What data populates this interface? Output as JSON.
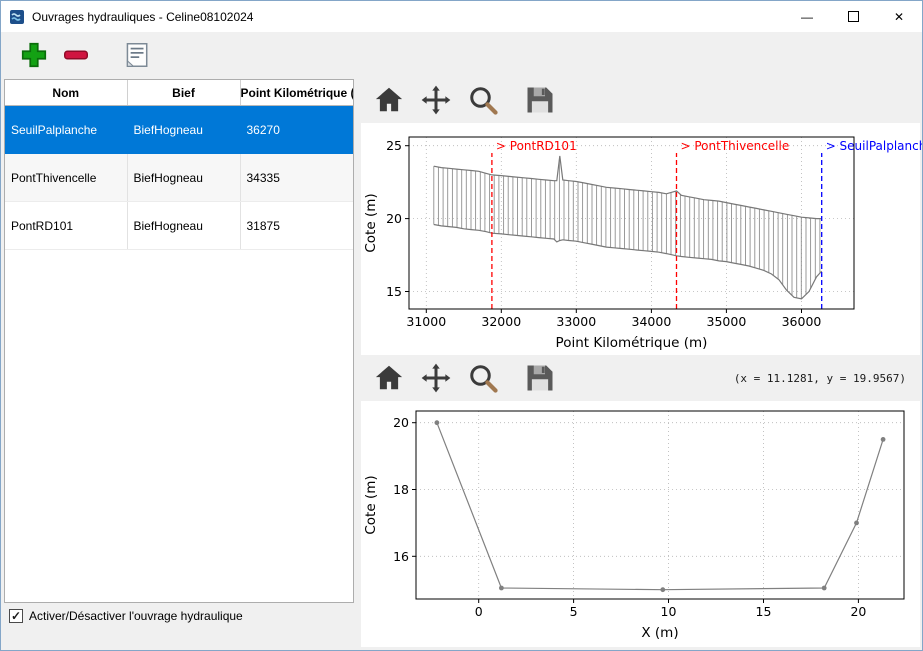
{
  "window": {
    "title": "Ouvrages hydrauliques - Celine08102024",
    "controls": {
      "minimize": "—",
      "close": "✕"
    }
  },
  "toolbar": {
    "buttons": [
      "add",
      "remove",
      "edit"
    ]
  },
  "table": {
    "columns": [
      "Nom",
      "Bief",
      "Point Kilométrique (m)"
    ],
    "rows": [
      {
        "nom": "SeuilPalplanche",
        "bief": "BiefHogneau",
        "pk": "36270",
        "selected": true
      },
      {
        "nom": "PontThivencelle",
        "bief": "BiefHogneau",
        "pk": "34335",
        "selected": false
      },
      {
        "nom": "PontRD101",
        "bief": "BiefHogneau",
        "pk": "31875",
        "selected": false
      }
    ]
  },
  "footer": {
    "checkbox_label": "Activer/Désactiver l'ouvrage hydraulique",
    "checkbox_checked": true,
    "check_glyph": "✓"
  },
  "plot_toolbar": {
    "buttons": [
      "home",
      "pan",
      "zoom",
      "save"
    ],
    "coords": "(x = 11.1281,  y = 19.9567)"
  },
  "colors": {
    "selection": "#0078d7",
    "annotation_red": "#ff0000",
    "annotation_blue": "#0000ff",
    "profile_gray": "#787878"
  },
  "chart_data": [
    {
      "type": "line",
      "title": "",
      "xlabel": "Point Kilométrique (m)",
      "ylabel": "Cote (m)",
      "xlim": [
        30770,
        36700
      ],
      "ylim": [
        13.8,
        25.6
      ],
      "xticks": [
        31000,
        32000,
        33000,
        34000,
        35000,
        36000
      ],
      "yticks": [
        15,
        20,
        25
      ],
      "grid": true,
      "hatch": {
        "step": 62,
        "color": "#8f8f8f"
      },
      "series": [
        {
          "name": "profile_bottom",
          "color": "#787878",
          "marker": false,
          "x": [
            31100,
            31200,
            31300,
            31400,
            31500,
            31600,
            31700,
            31800,
            31875,
            32000,
            32100,
            32200,
            32300,
            32400,
            32500,
            32600,
            32700,
            32740,
            32780,
            32820,
            32900,
            33000,
            33100,
            33200,
            33300,
            33400,
            33500,
            33600,
            33700,
            33800,
            33900,
            34000,
            34100,
            34200,
            34335,
            34400,
            34500,
            34600,
            34700,
            34800,
            34900,
            35000,
            35100,
            35200,
            35300,
            35400,
            35500,
            35600,
            35700,
            35800,
            35900,
            36000,
            36100,
            36200,
            36270
          ],
          "y": [
            19.6,
            19.5,
            19.45,
            19.4,
            19.3,
            19.25,
            19.2,
            19.1,
            19.0,
            18.95,
            18.9,
            18.85,
            18.8,
            18.75,
            18.7,
            18.65,
            18.6,
            18.4,
            18.5,
            18.55,
            18.5,
            18.45,
            18.35,
            18.25,
            18.15,
            18.05,
            18.0,
            17.95,
            17.9,
            17.85,
            17.8,
            17.75,
            17.7,
            17.6,
            17.45,
            17.4,
            17.35,
            17.3,
            17.25,
            17.2,
            17.1,
            17.05,
            16.95,
            16.85,
            16.75,
            16.6,
            16.45,
            16.2,
            15.8,
            15.1,
            14.6,
            14.5,
            15.0,
            16.0,
            16.4
          ]
        },
        {
          "name": "profile_top",
          "color": "#787878",
          "marker": false,
          "x": [
            31100,
            31200,
            31300,
            31400,
            31500,
            31600,
            31700,
            31800,
            31875,
            32000,
            32100,
            32200,
            32300,
            32400,
            32500,
            32600,
            32700,
            32740,
            32780,
            32820,
            32900,
            33000,
            33100,
            33200,
            33300,
            33400,
            33500,
            33600,
            33700,
            33800,
            33900,
            34000,
            34100,
            34200,
            34335,
            34400,
            34500,
            34600,
            34700,
            34800,
            34900,
            35000,
            35100,
            35200,
            35300,
            35400,
            35500,
            35600,
            35700,
            35800,
            35900,
            36000,
            36100,
            36200,
            36270
          ],
          "y": [
            23.6,
            23.5,
            23.45,
            23.4,
            23.35,
            23.3,
            23.25,
            23.1,
            23.0,
            22.95,
            22.9,
            22.85,
            22.8,
            22.75,
            22.7,
            22.65,
            22.6,
            22.6,
            24.3,
            22.65,
            22.6,
            22.55,
            22.45,
            22.35,
            22.25,
            22.15,
            22.1,
            22.05,
            22.0,
            21.95,
            21.9,
            21.85,
            21.8,
            21.7,
            21.9,
            21.6,
            21.5,
            21.4,
            21.3,
            21.25,
            21.2,
            21.1,
            21.0,
            20.9,
            20.8,
            20.7,
            20.6,
            20.5,
            20.4,
            20.3,
            20.2,
            20.1,
            20.05,
            20.0,
            20.0
          ]
        }
      ],
      "annotations": [
        {
          "x": 31875,
          "label": "> PontRD101",
          "color": "#ff0000",
          "style": "dashed"
        },
        {
          "x": 34335,
          "label": "> PontThivencelle",
          "color": "#ff0000",
          "style": "dashed"
        },
        {
          "x": 36270,
          "label": "> SeuilPalplanche",
          "color": "#0000ff",
          "style": "dashed"
        }
      ]
    },
    {
      "type": "line",
      "title": "",
      "xlabel": "X (m)",
      "ylabel": "Cote (m)",
      "xlim": [
        -3.3,
        22.4
      ],
      "ylim": [
        14.72,
        20.35
      ],
      "xticks": [
        0,
        5,
        10,
        15,
        20
      ],
      "yticks": [
        16,
        18,
        20
      ],
      "grid": true,
      "series": [
        {
          "name": "cross_section",
          "color": "#808080",
          "marker": true,
          "x": [
            -2.2,
            1.2,
            9.7,
            18.2,
            19.9,
            21.3
          ],
          "y": [
            20.0,
            15.05,
            15.0,
            15.05,
            17.0,
            19.5
          ]
        }
      ]
    }
  ]
}
